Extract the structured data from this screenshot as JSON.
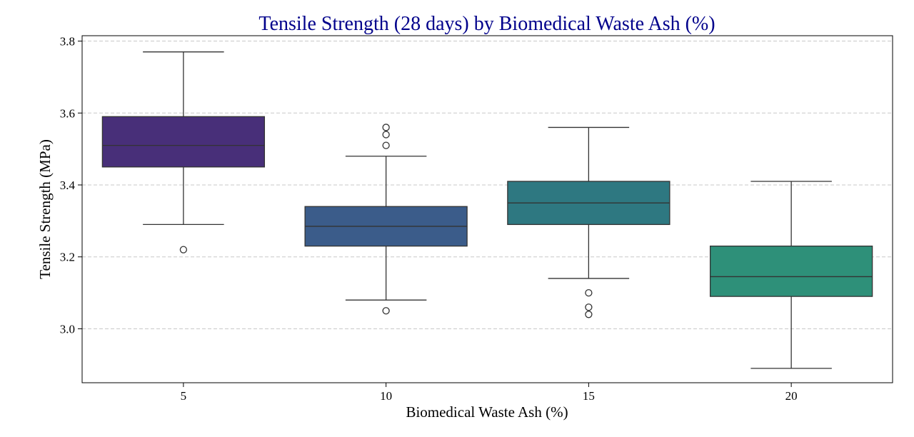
{
  "chart_data": {
    "type": "box",
    "title": "Tensile Strength (28 days) by Biomedical Waste Ash (%)",
    "xlabel": "Biomedical Waste Ash (%)",
    "ylabel": "Tensile Strength (MPa)",
    "categories": [
      "5",
      "10",
      "15",
      "20"
    ],
    "yticks": [
      "3.0",
      "3.2",
      "3.4",
      "3.6",
      "3.8"
    ],
    "ylim": [
      2.85,
      3.815
    ],
    "grid": "y-dashed",
    "colors": {
      "title": "#00008b",
      "boxes": [
        "#482f79",
        "#3b5c8a",
        "#2e7881",
        "#2e9079"
      ],
      "grid": "#c8c8c8",
      "line": "#333333"
    },
    "boxes": [
      {
        "category": "5",
        "whisker_low": 3.29,
        "q1": 3.45,
        "median": 3.51,
        "q3": 3.59,
        "whisker_high": 3.77,
        "outliers": [
          3.22
        ]
      },
      {
        "category": "10",
        "whisker_low": 3.08,
        "q1": 3.23,
        "median": 3.285,
        "q3": 3.34,
        "whisker_high": 3.48,
        "outliers": [
          3.05,
          3.51,
          3.54,
          3.56
        ]
      },
      {
        "category": "15",
        "whisker_low": 3.14,
        "q1": 3.29,
        "median": 3.35,
        "q3": 3.41,
        "whisker_high": 3.56,
        "outliers": [
          3.04,
          3.06,
          3.1
        ]
      },
      {
        "category": "20",
        "whisker_low": 2.89,
        "q1": 3.09,
        "median": 3.145,
        "q3": 3.23,
        "whisker_high": 3.41,
        "outliers": []
      }
    ]
  }
}
